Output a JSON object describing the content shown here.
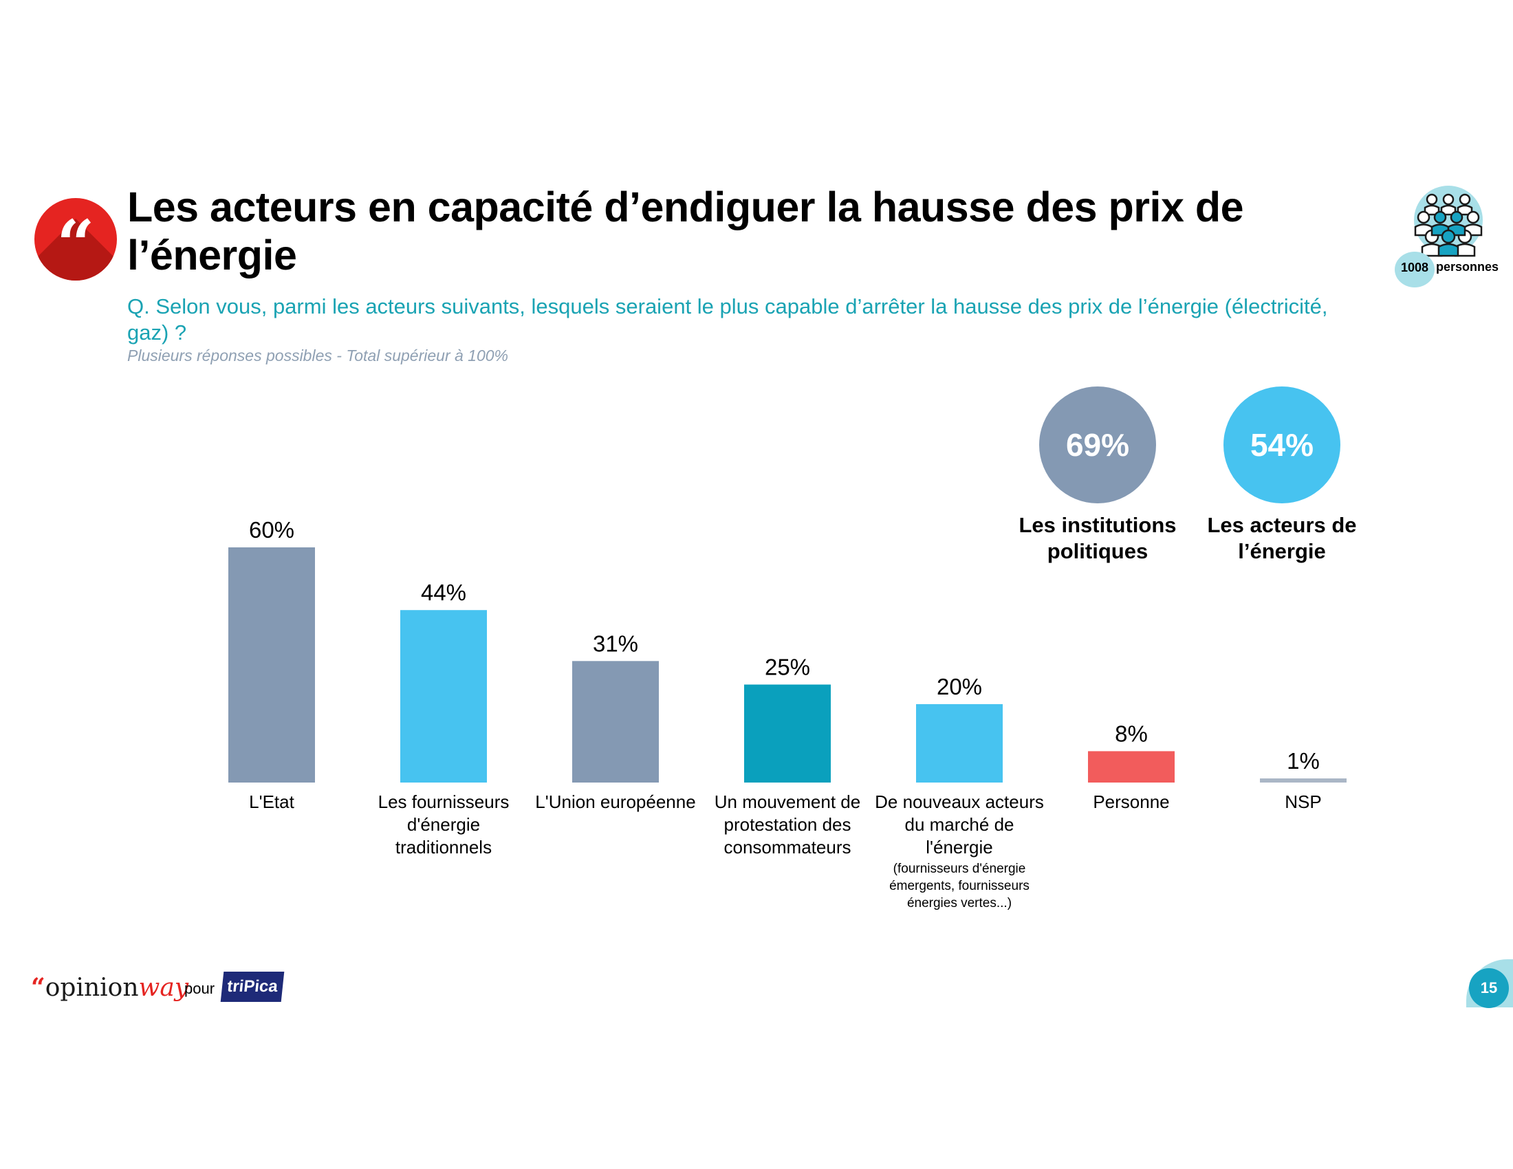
{
  "header": {
    "title": "Les acteurs en capacité d’endiguer la hausse des prix de l’énergie",
    "question": "Q. Selon vous, parmi les acteurs suivants, lesquels seraient le plus capable d’arrêter la hausse des prix de l’énergie (électricité, gaz) ?",
    "note": "Plusieurs réponses possibles - Total supérieur à 100%"
  },
  "sample": {
    "count": "1008",
    "label": "personnes"
  },
  "summary": [
    {
      "value": "69%",
      "label": "Les institutions politiques",
      "color": "#8499b3"
    },
    {
      "value": "54%",
      "label": "Les acteurs de l’énergie",
      "color": "#47c3f0"
    }
  ],
  "chart_data": {
    "type": "bar",
    "title": "",
    "xlabel": "",
    "ylabel": "",
    "ylim": [
      0,
      60
    ],
    "grid": false,
    "legend": "none",
    "categories": [
      "L'Etat",
      "Les fournisseurs d'énergie traditionnels",
      "L'Union européenne",
      "Un mouvement de protestation des consommateurs",
      "De nouveaux acteurs du marché de l'énergie",
      "Personne",
      "NSP"
    ],
    "category_notes": [
      "",
      "",
      "",
      "",
      "(fournisseurs d'énergie émergents, fournisseurs énergies vertes...)",
      "",
      ""
    ],
    "values": [
      60,
      44,
      31,
      25,
      20,
      8,
      1
    ],
    "value_labels": [
      "60%",
      "44%",
      "31%",
      "25%",
      "20%",
      "8%",
      "1%"
    ],
    "bar_colors": [
      "#8499b3",
      "#47c3f0",
      "#8499b3",
      "#0aa0bd",
      "#47c3f0",
      "#f25c5c",
      "#aab6c6"
    ]
  },
  "footer": {
    "brand_prefix": "“",
    "brand_main": "opinion",
    "brand_suffix": "way",
    "connector": "pour",
    "client": "triPica",
    "page": "15"
  }
}
